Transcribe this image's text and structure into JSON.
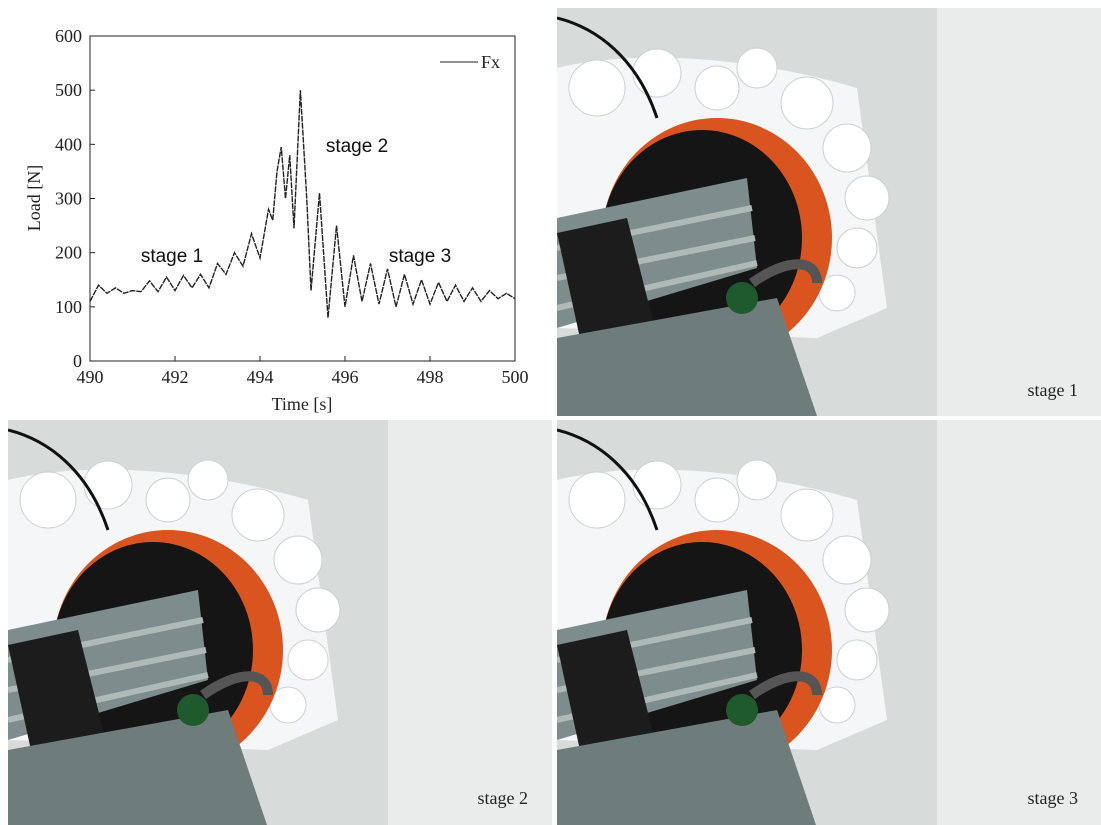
{
  "chart_data": {
    "type": "line",
    "xlabel": "Time [s]",
    "ylabel": "Load [N]",
    "annotations": [
      "stage 1",
      "stage 2",
      "stage 3"
    ],
    "legend": "upper right",
    "x": [
      490.0,
      490.2,
      490.4,
      490.6,
      490.8,
      491.0,
      491.2,
      491.4,
      491.6,
      491.8,
      492.0,
      492.2,
      492.4,
      492.6,
      492.8,
      493.0,
      493.2,
      493.4,
      493.6,
      493.8,
      494.0,
      494.2,
      494.3,
      494.4,
      494.5,
      494.6,
      494.7,
      494.8,
      494.95,
      495.1,
      495.2,
      495.4,
      495.6,
      495.8,
      496.0,
      496.2,
      496.4,
      496.6,
      496.8,
      497.0,
      497.2,
      497.4,
      497.6,
      497.8,
      498.0,
      498.2,
      498.4,
      498.6,
      498.8,
      499.0,
      499.2,
      499.4,
      499.6,
      499.8,
      500.0
    ],
    "series": [
      {
        "name": "Fx",
        "color": "#222222",
        "values": [
          110,
          140,
          125,
          135,
          125,
          130,
          128,
          148,
          128,
          155,
          130,
          158,
          135,
          160,
          135,
          180,
          160,
          200,
          175,
          235,
          190,
          280,
          260,
          350,
          395,
          300,
          380,
          245,
          500,
          300,
          130,
          310,
          80,
          250,
          100,
          195,
          110,
          180,
          105,
          170,
          100,
          160,
          105,
          150,
          105,
          145,
          110,
          140,
          110,
          135,
          110,
          130,
          115,
          125,
          115
        ]
      }
    ],
    "xlim": [
      490,
      500
    ],
    "xticks": [
      490,
      492,
      494,
      496,
      498,
      500
    ],
    "ylim": [
      0,
      600
    ],
    "yticks": [
      0,
      100,
      200,
      300,
      400,
      500,
      600
    ]
  },
  "photos": {
    "captions": [
      "stage 1",
      "stage 2",
      "stage 3"
    ]
  }
}
